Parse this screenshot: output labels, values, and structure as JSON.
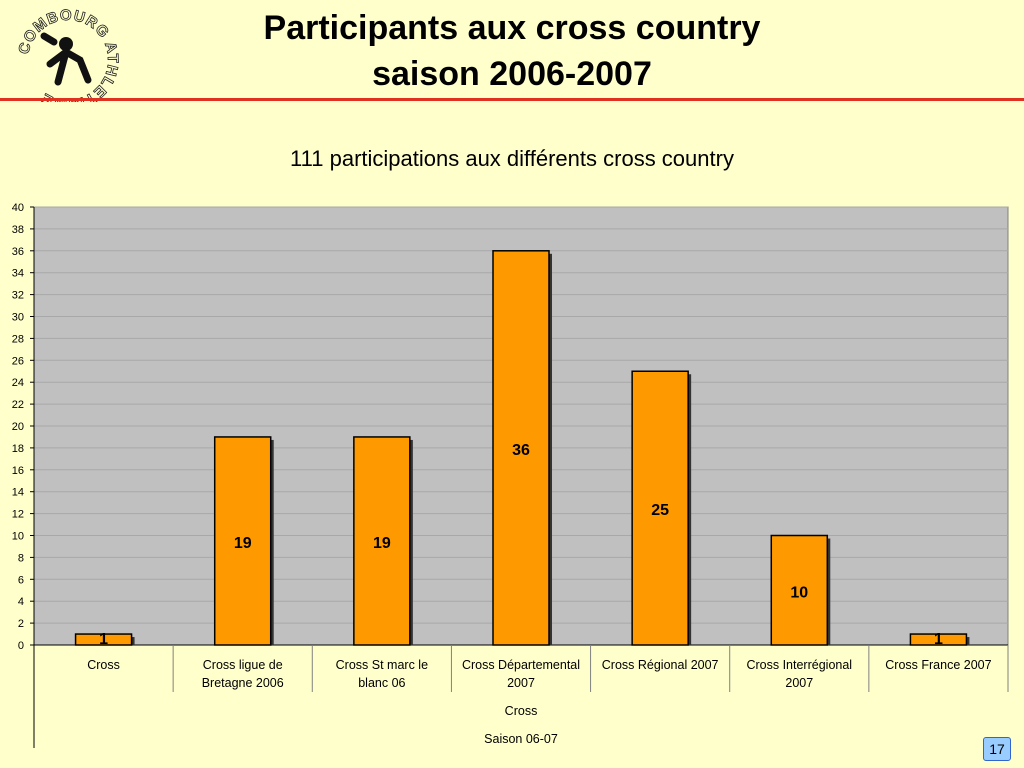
{
  "slide": {
    "title_line1": "Participants aux cross country",
    "title_line2": "saison 2006-2007",
    "logo_text": "COMBOURG ATHLETISME",
    "page_number": "17"
  },
  "colors": {
    "background": "#FFFFCC",
    "plot_area": "#C0C0C0",
    "bar": "#FF9900",
    "rule": "#E03020",
    "page_badge": "#99CCFF"
  },
  "chart_data": {
    "type": "bar",
    "title": "111 participations aux différents cross country",
    "categories": [
      "Cross",
      "Cross ligue de Bretagne 2006",
      "Cross St marc le blanc 06",
      "Cross Départemental 2007",
      "Cross Régional 2007",
      "Cross Interrégional 2007",
      "Cross France 2007"
    ],
    "category_lines": [
      [
        "Cross"
      ],
      [
        "Cross ligue de",
        "Bretagne 2006"
      ],
      [
        "Cross St marc le",
        "blanc 06"
      ],
      [
        "Cross Départemental",
        "2007"
      ],
      [
        "Cross Régional 2007"
      ],
      [
        "Cross Interrégional",
        "2007"
      ],
      [
        "Cross France 2007"
      ]
    ],
    "values": [
      1,
      19,
      19,
      36,
      25,
      10,
      1
    ],
    "group_label": "Cross",
    "outer_group_label": "Saison 06-07",
    "ylim": [
      0,
      40
    ],
    "ytick_step": 2,
    "grid": true,
    "legend": "none"
  }
}
